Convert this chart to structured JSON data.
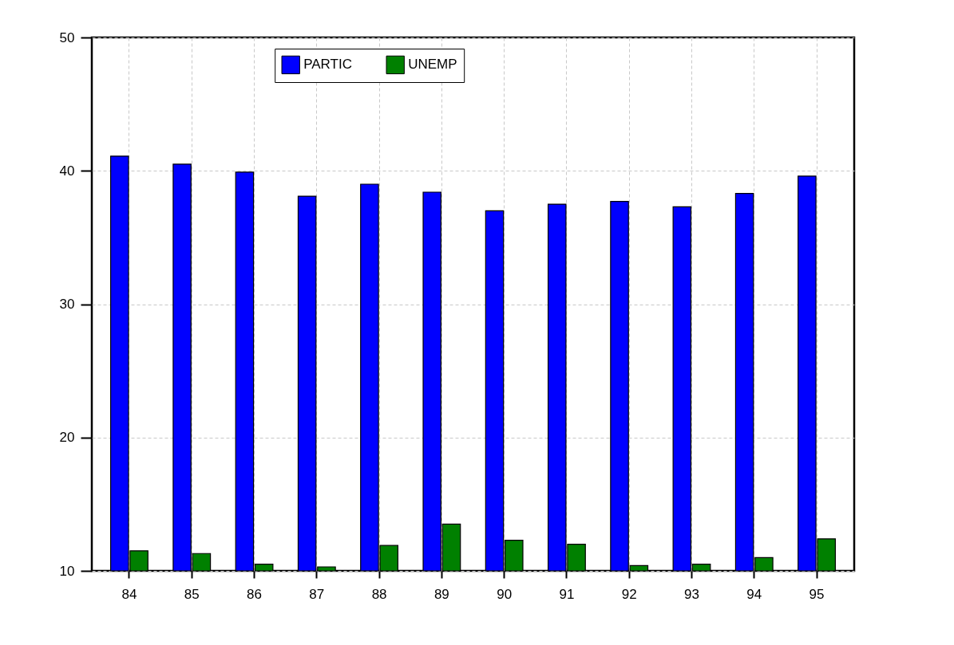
{
  "chart_data": {
    "type": "bar",
    "categories": [
      "84",
      "85",
      "86",
      "87",
      "88",
      "89",
      "90",
      "91",
      "92",
      "93",
      "94",
      "95"
    ],
    "series": [
      {
        "name": "PARTIC",
        "color": "#0000ff",
        "values": [
          41.1,
          40.5,
          39.9,
          38.1,
          39.0,
          38.4,
          37.0,
          37.5,
          37.7,
          37.3,
          38.3,
          39.6
        ]
      },
      {
        "name": "UNEMP",
        "color": "#008000",
        "values": [
          11.5,
          11.3,
          10.5,
          10.3,
          11.9,
          13.5,
          12.3,
          12.0,
          10.4,
          10.5,
          11.0,
          12.4
        ]
      }
    ],
    "ylim": [
      10,
      50
    ],
    "yticks": [
      10,
      20,
      30,
      40,
      50
    ],
    "grid": true,
    "legend": "top"
  }
}
